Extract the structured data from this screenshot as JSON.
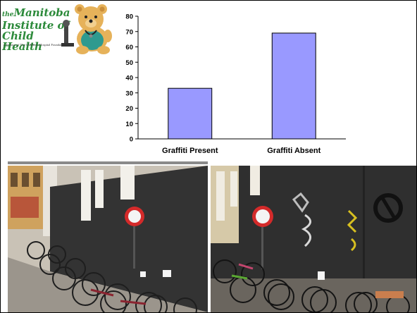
{
  "logo": {
    "line_the": "the",
    "line1": "Manitoba",
    "line2": "Institute of",
    "line3": "Child Health",
    "subtitle": "a division of The Children's Hospital Foundation"
  },
  "chart_data": {
    "type": "bar",
    "categories": [
      "Graffiti Present",
      "Graffiti Absent"
    ],
    "values": [
      33,
      69
    ],
    "ylim": [
      0,
      80
    ],
    "yticks": [
      0,
      10,
      20,
      30,
      40,
      50,
      60,
      70,
      80
    ],
    "title": "",
    "xlabel": "",
    "ylabel": "",
    "bar_color": "#9999ff",
    "grid": false
  },
  "photos": {
    "left_label": "",
    "right_label": "",
    "wall_color": "#3a3a3a",
    "sign_red": "#d42a2a"
  }
}
